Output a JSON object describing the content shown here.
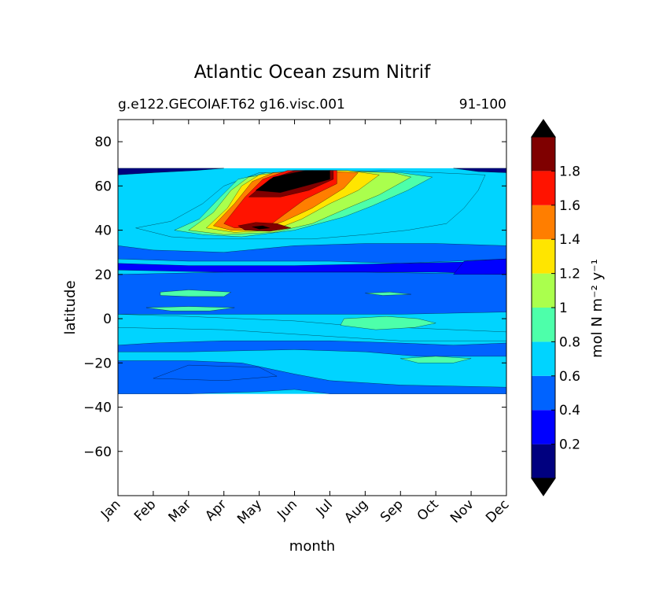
{
  "chart_data": {
    "type": "contour",
    "title": "Atlantic Ocean zsum Nitrif",
    "subtitle_left": "g.e122.GECOIAF.T62 g16.visc.001",
    "subtitle_right": "91-100",
    "xlabel": "month",
    "ylabel": "latitude",
    "x_ticks": [
      "Jan",
      "Feb",
      "Mar",
      "Apr",
      "May",
      "Jun",
      "Jul",
      "Aug",
      "Sep",
      "Oct",
      "Nov",
      "Dec"
    ],
    "y_ticks": [
      80,
      60,
      40,
      20,
      0,
      -20,
      -40,
      -60
    ],
    "y_tick_labels": [
      "80",
      "60",
      "40",
      "20",
      "0",
      "−20",
      "−40",
      "−60"
    ],
    "ylim": [
      -80,
      90
    ],
    "data_lat_range": [
      -34,
      68
    ],
    "colorbar": {
      "label": "mol N m⁻² y⁻¹",
      "levels": [
        0,
        0.2,
        0.4,
        0.6,
        0.8,
        1.0,
        1.2,
        1.4,
        1.6,
        1.8,
        2.0
      ],
      "tick_values": [
        0.2,
        0.4,
        0.6,
        0.8,
        1.0,
        1.2,
        1.4,
        1.6,
        1.8
      ],
      "tick_labels": [
        "0.2",
        "0.4",
        "0.6",
        "0.8",
        "1",
        "1.2",
        "1.4",
        "1.6",
        "1.8"
      ],
      "colors": [
        "#00007f",
        "#0000ff",
        "#0063ff",
        "#00d4ff",
        "#4dffaa",
        "#aaff4d",
        "#ffe500",
        "#ff7e00",
        "#ff1300",
        "#7f0000"
      ],
      "extend_colors": {
        "under": "#000000",
        "over": "#000000"
      }
    },
    "background_level_color": "#00d4ff",
    "regions": [
      {
        "level": 0.5,
        "points": [
          [
            1,
            33
          ],
          [
            1,
            27
          ],
          [
            3,
            26
          ],
          [
            5,
            26
          ],
          [
            7,
            26
          ],
          [
            9,
            25
          ],
          [
            10.5,
            26
          ],
          [
            12,
            27
          ],
          [
            12,
            33
          ],
          [
            10,
            34
          ],
          [
            8,
            34
          ],
          [
            6,
            33
          ],
          [
            4,
            30
          ],
          [
            2,
            31
          ]
        ]
      },
      {
        "level": 0.3,
        "points": [
          [
            1,
            25
          ],
          [
            1,
            22
          ],
          [
            4,
            21
          ],
          [
            7,
            21
          ],
          [
            10,
            21
          ],
          [
            12,
            20
          ],
          [
            12,
            26
          ],
          [
            9,
            25
          ],
          [
            6,
            24
          ],
          [
            3,
            24
          ]
        ]
      },
      {
        "level": 0.5,
        "points": [
          [
            1,
            20
          ],
          [
            1,
            2
          ],
          [
            6,
            2
          ],
          [
            9,
            2
          ],
          [
            12,
            3
          ],
          [
            12,
            20
          ],
          [
            8,
            21
          ],
          [
            4,
            21
          ]
        ]
      },
      {
        "level": 0.5,
        "points": [
          [
            1,
            -12
          ],
          [
            2,
            -11
          ],
          [
            4,
            -10
          ],
          [
            7,
            -10
          ],
          [
            9,
            -11
          ],
          [
            10.5,
            -12
          ],
          [
            12,
            -11
          ],
          [
            12,
            -34
          ],
          [
            9,
            -34
          ],
          [
            7,
            -34
          ],
          [
            6,
            -32
          ],
          [
            5,
            -33
          ],
          [
            3,
            -34
          ],
          [
            1,
            -34
          ]
        ]
      },
      {
        "level": 0.7,
        "points": [
          [
            1,
            -15
          ],
          [
            3,
            -15
          ],
          [
            6,
            -14
          ],
          [
            8,
            -15
          ],
          [
            9.5,
            -17
          ],
          [
            12,
            -17
          ],
          [
            12,
            -31
          ],
          [
            9,
            -30
          ],
          [
            7,
            -28
          ],
          [
            6,
            -25
          ],
          [
            4.5,
            -20
          ],
          [
            3,
            -19
          ],
          [
            1,
            -19
          ]
        ]
      },
      {
        "level": 0.5,
        "points": [
          [
            3,
            -21
          ],
          [
            5,
            -22
          ],
          [
            5.5,
            -26
          ],
          [
            4,
            -28
          ],
          [
            2,
            -27
          ]
        ]
      },
      {
        "level": 0.7,
        "points": [
          [
            1,
            2
          ],
          [
            3,
            1
          ],
          [
            4.5,
            0
          ],
          [
            6,
            -1
          ],
          [
            7.5,
            -3
          ],
          [
            9,
            -4
          ],
          [
            10.5,
            -5
          ],
          [
            12,
            -6
          ],
          [
            12,
            -10
          ],
          [
            9,
            -10
          ],
          [
            7,
            -8
          ],
          [
            4,
            -5
          ],
          [
            1,
            -4
          ]
        ]
      },
      {
        "level": 0.7,
        "points": [
          [
            1.5,
            41
          ],
          [
            2.5,
            44
          ],
          [
            3.4,
            52
          ],
          [
            4,
            60
          ],
          [
            5,
            66
          ],
          [
            6.5,
            66
          ],
          [
            8.5,
            67
          ],
          [
            10,
            66
          ],
          [
            11.4,
            65
          ],
          [
            11.2,
            58
          ],
          [
            10.8,
            50
          ],
          [
            10.3,
            43
          ],
          [
            9.2,
            40
          ],
          [
            8,
            38
          ],
          [
            6.5,
            36
          ],
          [
            5,
            36
          ],
          [
            3.5,
            36
          ],
          [
            2.5,
            37
          ]
        ]
      },
      {
        "level": 0.9,
        "points": [
          [
            7.4,
            0
          ],
          [
            8.6,
            1
          ],
          [
            9.5,
            0
          ],
          [
            10,
            -2
          ],
          [
            9.4,
            -4
          ],
          [
            8.3,
            -5
          ],
          [
            7.3,
            -3
          ]
        ]
      },
      {
        "level": 0.9,
        "points": [
          [
            9,
            -18
          ],
          [
            10,
            -17
          ],
          [
            11,
            -18
          ],
          [
            10.5,
            -20
          ],
          [
            9.5,
            -20
          ]
        ]
      },
      {
        "level": 0.9,
        "points": [
          [
            2.6,
            40
          ],
          [
            3.3,
            45
          ],
          [
            3.9,
            55
          ],
          [
            4.4,
            63
          ],
          [
            5.2,
            66
          ],
          [
            7,
            67
          ],
          [
            9,
            66
          ],
          [
            9.9,
            64
          ],
          [
            9.2,
            58
          ],
          [
            8.2,
            51
          ],
          [
            7.4,
            46
          ],
          [
            6,
            40
          ],
          [
            4.5,
            37
          ],
          [
            3.4,
            38
          ]
        ]
      },
      {
        "level": 1.1,
        "points": [
          [
            3,
            40
          ],
          [
            3.7,
            48
          ],
          [
            4.2,
            58
          ],
          [
            4.7,
            64
          ],
          [
            5.6,
            66
          ],
          [
            7,
            67
          ],
          [
            8.8,
            66
          ],
          [
            9.3,
            64
          ],
          [
            8.4,
            56
          ],
          [
            7.5,
            50
          ],
          [
            6.5,
            43
          ],
          [
            5.4,
            39
          ],
          [
            4,
            38
          ]
        ]
      },
      {
        "level": 1.3,
        "points": [
          [
            3.5,
            41
          ],
          [
            4.1,
            50
          ],
          [
            4.5,
            60
          ],
          [
            5,
            65
          ],
          [
            6,
            67
          ],
          [
            7.5,
            67
          ],
          [
            8.4,
            65
          ],
          [
            7.8,
            58
          ],
          [
            7,
            52
          ],
          [
            6.2,
            45
          ],
          [
            5.4,
            40
          ],
          [
            4.3,
            39
          ]
        ]
      },
      {
        "level": 1.5,
        "points": [
          [
            3.7,
            42
          ],
          [
            4.3,
            52
          ],
          [
            4.8,
            62
          ],
          [
            5.4,
            66
          ],
          [
            6.5,
            67
          ],
          [
            7.8,
            66
          ],
          [
            7.4,
            59
          ],
          [
            6.5,
            50
          ],
          [
            5.7,
            44
          ],
          [
            5,
            40
          ],
          [
            4.2,
            40
          ]
        ]
      },
      {
        "level": 1.7,
        "points": [
          [
            4,
            43
          ],
          [
            4.6,
            55
          ],
          [
            5.1,
            63
          ],
          [
            5.8,
            67
          ],
          [
            7.2,
            67
          ],
          [
            7.2,
            61
          ],
          [
            6.3,
            54
          ],
          [
            5.7,
            47
          ],
          [
            5.2,
            41
          ],
          [
            4.3,
            41
          ]
        ]
      },
      {
        "level": 1.9,
        "points": [
          [
            4.7,
            55
          ],
          [
            5.3,
            63
          ],
          [
            6,
            67
          ],
          [
            7.1,
            67
          ],
          [
            7.1,
            63
          ],
          [
            6.4,
            58
          ],
          [
            5.6,
            55
          ]
        ]
      },
      {
        "level": 2.2,
        "points": [
          [
            4.9,
            58
          ],
          [
            5.4,
            64
          ],
          [
            6.3,
            67
          ],
          [
            7,
            67
          ],
          [
            7,
            63
          ],
          [
            6.3,
            60
          ],
          [
            5.6,
            57
          ]
        ]
      },
      {
        "level": 1.9,
        "points": [
          [
            4.4,
            42
          ],
          [
            4.9,
            43.5
          ],
          [
            5.5,
            43
          ],
          [
            5.9,
            41
          ],
          [
            5.3,
            39.5
          ],
          [
            4.6,
            40
          ]
        ]
      },
      {
        "level": 2.2,
        "points": [
          [
            4.8,
            41.5
          ],
          [
            5.1,
            42
          ],
          [
            5.3,
            41
          ],
          [
            5,
            40.5
          ]
        ]
      },
      {
        "level": 0.9,
        "points": [
          [
            2.2,
            12
          ],
          [
            3,
            13
          ],
          [
            4.2,
            12
          ],
          [
            4,
            10
          ],
          [
            3,
            10
          ],
          [
            2.2,
            10.5
          ]
        ]
      },
      {
        "level": 0.9,
        "points": [
          [
            1.8,
            5
          ],
          [
            3,
            5.5
          ],
          [
            4.3,
            5
          ],
          [
            3.6,
            3.5
          ],
          [
            2.5,
            3.5
          ]
        ]
      },
      {
        "level": 0.9,
        "points": [
          [
            8,
            11.5
          ],
          [
            8.7,
            12
          ],
          [
            9.3,
            11
          ],
          [
            8.5,
            10.5
          ]
        ]
      },
      {
        "level": 0.3,
        "points": [
          [
            10.5,
            20
          ],
          [
            12,
            20
          ],
          [
            12,
            27
          ],
          [
            10.8,
            26
          ]
        ]
      },
      {
        "level": 0.1,
        "points": [
          [
            1,
            68
          ],
          [
            1,
            65
          ],
          [
            2,
            66
          ],
          [
            3.2,
            67
          ],
          [
            4,
            68
          ]
        ]
      },
      {
        "level": 0.1,
        "points": [
          [
            10.5,
            68
          ],
          [
            12,
            68
          ],
          [
            12,
            66
          ],
          [
            11.2,
            66.5
          ]
        ]
      }
    ]
  }
}
